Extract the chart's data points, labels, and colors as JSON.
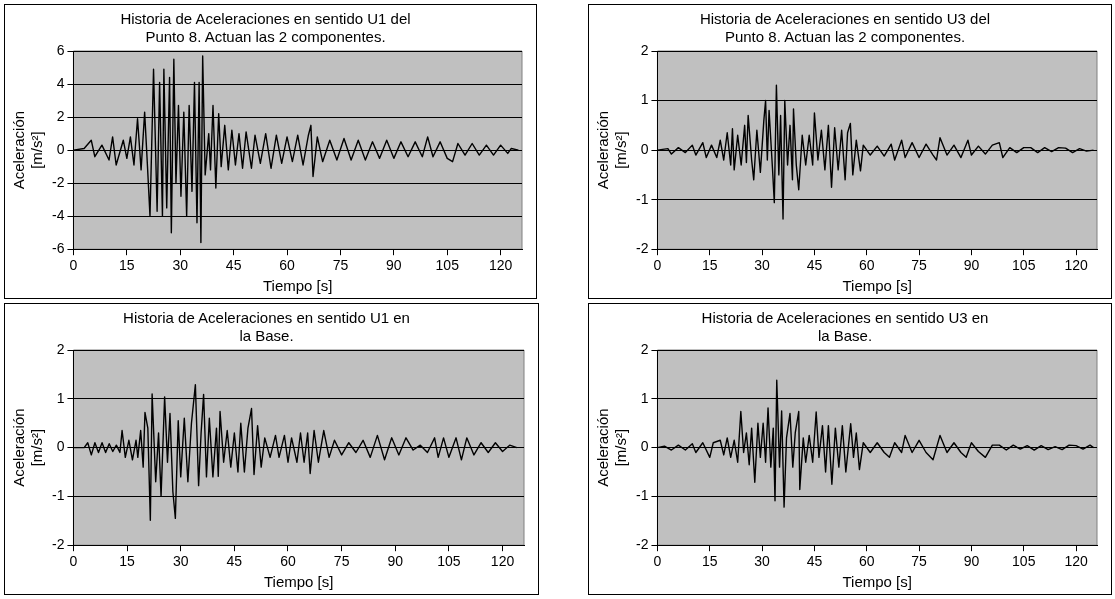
{
  "chart_data": [
    {
      "type": "line",
      "title": "Historia de Aceleraciones en sentido U1 del\nPunto 8. Actuan las 2 componentes.",
      "xlabel": "Tiempo [s]",
      "ylabel": "Aceleración\n[m/s²]",
      "xlim": [
        0,
        126
      ],
      "xticks": [
        0,
        15,
        30,
        45,
        60,
        75,
        90,
        105,
        120
      ],
      "ylim": [
        -6,
        6
      ],
      "yticks": [
        -6,
        -4,
        -2,
        0,
        2,
        4,
        6
      ],
      "grid": "y",
      "legend": false,
      "marker": "none",
      "line_style": "solid",
      "series": [
        {
          "color": "#000000",
          "x": [
            0,
            3,
            5,
            6,
            8,
            10,
            11,
            12,
            14,
            15,
            16,
            17,
            18,
            19,
            20,
            20.8,
            21.5,
            22.5,
            23.5,
            24.2,
            25,
            25.4,
            26.2,
            27,
            27.5,
            28.2,
            28.8,
            29.5,
            30.2,
            31,
            31.8,
            32.5,
            33.3,
            34,
            34.7,
            35.3,
            35.8,
            36.3,
            37,
            38,
            38.5,
            39.2,
            40,
            40.8,
            41.5,
            42.5,
            43.5,
            44.5,
            45.5,
            46.5,
            47.5,
            48.5,
            50,
            51,
            52.5,
            54,
            55.5,
            57,
            58.5,
            60,
            61.5,
            63,
            64.5,
            66,
            66.7,
            67.3,
            68.5,
            70,
            72,
            74,
            76,
            78,
            80,
            82,
            84,
            86,
            88,
            90,
            92,
            94,
            96,
            98,
            99.5,
            101,
            103,
            105,
            106.5,
            108,
            110,
            112,
            114,
            116,
            118,
            120,
            122,
            123,
            125
          ],
          "values": [
            0,
            0.1,
            0.6,
            -0.4,
            0.3,
            -0.6,
            0.8,
            -0.9,
            0.6,
            -0.5,
            0.8,
            -0.9,
            1.9,
            -1.2,
            2.3,
            -1.0,
            -4.0,
            4.9,
            -3.7,
            4.1,
            -4.0,
            4.9,
            -3.5,
            4.4,
            -5.0,
            5.5,
            -2.0,
            2.7,
            -2.8,
            2.3,
            -4.0,
            2.7,
            -2.5,
            4.1,
            -4.4,
            4.1,
            -5.6,
            5.7,
            -1.5,
            1.0,
            -1.2,
            2.7,
            -2.3,
            2.2,
            -1.0,
            1.5,
            -1.2,
            1.2,
            -0.9,
            1.0,
            -1.1,
            1.1,
            -1.1,
            0.9,
            -0.8,
            1.0,
            -1.1,
            0.9,
            -0.8,
            0.8,
            -0.7,
            0.9,
            -0.9,
            0.9,
            1.5,
            -1.6,
            0.8,
            -0.7,
            0.6,
            -0.6,
            0.7,
            -0.6,
            0.6,
            -0.6,
            0.5,
            -0.5,
            0.6,
            -0.5,
            0.5,
            -0.4,
            0.5,
            -0.4,
            0.8,
            -0.4,
            0.5,
            -0.5,
            -0.7,
            0.4,
            -0.3,
            0.4,
            -0.3,
            0.3,
            -0.3,
            0.3,
            -0.2,
            0.1,
            0
          ]
        }
      ]
    },
    {
      "type": "line",
      "title": "Historia de Aceleraciones en sentido U3 del\nPunto 8. Actuan las 2 componentes.",
      "xlabel": "Tiempo [s]",
      "ylabel": "Aceleración\n[m/s²]",
      "xlim": [
        0,
        126
      ],
      "xticks": [
        0,
        15,
        30,
        45,
        60,
        75,
        90,
        105,
        120
      ],
      "ylim": [
        -2,
        2
      ],
      "yticks": [
        -2,
        -1,
        0,
        1,
        2
      ],
      "grid": "y",
      "legend": false,
      "marker": "none",
      "line_style": "solid",
      "series": [
        {
          "color": "#000000",
          "x": [
            0,
            3,
            4,
            6,
            8,
            10,
            11,
            13,
            14,
            15.5,
            17,
            18,
            19,
            20,
            21,
            21.5,
            22,
            23,
            24,
            25,
            25.5,
            26,
            27,
            27.6,
            28.5,
            29.5,
            30.5,
            31,
            31.5,
            32,
            33,
            33.5,
            34.1,
            34.8,
            35.3,
            36,
            36.5,
            37.3,
            38,
            38.7,
            39,
            39.8,
            40.5,
            41.5,
            42.5,
            43.5,
            44.5,
            45,
            46,
            47,
            48,
            49,
            49.9,
            50.8,
            51.8,
            52.8,
            53.8,
            54.5,
            55.3,
            56,
            57,
            58.2,
            59,
            61,
            63,
            65,
            67,
            68,
            70,
            71,
            73,
            75,
            77,
            79,
            80,
            81,
            83,
            85,
            87,
            89,
            90,
            92,
            94,
            96,
            98,
            99,
            101,
            103,
            105,
            107,
            109,
            111,
            113,
            115,
            117,
            119,
            121,
            123,
            125
          ],
          "values": [
            0,
            0.03,
            -0.08,
            0.05,
            -0.05,
            0.1,
            -0.1,
            0.15,
            -0.15,
            0.1,
            -0.15,
            0.2,
            -0.2,
            0.35,
            -0.3,
            0.43,
            -0.4,
            0.3,
            -0.3,
            0.5,
            -0.25,
            0.7,
            -0.2,
            -0.6,
            0.4,
            -0.45,
            0.6,
            1.0,
            -0.2,
            0.8,
            -0.4,
            -1.06,
            1.31,
            -0.5,
            0.7,
            -1.39,
            1.0,
            -0.3,
            0.5,
            -0.6,
            0.83,
            -0.3,
            -0.8,
            0.3,
            -0.3,
            0.3,
            -0.3,
            0.75,
            -0.2,
            0.4,
            -0.4,
            0.5,
            -0.75,
            0.45,
            -0.4,
            0.4,
            -0.6,
            0.35,
            0.54,
            -0.5,
            0.2,
            -0.42,
            0.1,
            -0.1,
            0.08,
            -0.12,
            0.12,
            -0.2,
            0.2,
            -0.15,
            0.15,
            -0.15,
            0.12,
            -0.1,
            -0.2,
            0.25,
            -0.1,
            0.1,
            -0.15,
            0.2,
            -0.1,
            0.08,
            -0.08,
            0.1,
            0.15,
            -0.15,
            0.05,
            -0.05,
            0.05,
            0.05,
            -0.05,
            0.05,
            -0.03,
            0.05,
            0.04,
            -0.05,
            0.03,
            -0.02,
            0
          ]
        }
      ]
    },
    {
      "type": "line",
      "title": "Historia de Aceleraciones en sentido U1 en\nla Base.",
      "xlabel": "Tiempo [s]",
      "ylabel": "Aceleración\n[m/s²]",
      "xlim": [
        0,
        126
      ],
      "xticks": [
        0,
        15,
        30,
        45,
        60,
        75,
        90,
        105,
        120
      ],
      "ylim": [
        -2,
        2
      ],
      "yticks": [
        -2,
        -1,
        0,
        1,
        2
      ],
      "grid": "y",
      "legend": false,
      "marker": "none",
      "line_style": "solid",
      "series": [
        {
          "color": "#000000",
          "x": [
            0,
            3,
            4,
            5,
            6,
            7,
            8,
            9,
            10,
            11,
            12,
            13,
            13.6,
            14.5,
            15.5,
            16.5,
            17.5,
            18,
            18.8,
            19.5,
            20,
            20.8,
            21.5,
            22,
            23,
            23.8,
            24.5,
            25.5,
            26.3,
            27,
            27.8,
            28.5,
            29.3,
            30,
            31,
            32,
            33,
            34.1,
            35,
            35.7,
            36.4,
            37.2,
            38,
            39,
            40,
            40.5,
            41,
            42,
            43,
            44,
            45,
            46,
            46.8,
            47.8,
            48.8,
            49.8,
            50.5,
            51.5,
            52.5,
            53.5,
            55,
            56.5,
            57.5,
            59,
            60,
            61,
            62.5,
            63.5,
            64.5,
            65.5,
            66.2,
            67.3,
            68.5,
            70,
            71.5,
            73,
            75,
            77,
            79,
            81,
            83,
            85,
            87,
            89,
            91,
            93,
            95,
            97,
            99,
            101,
            102,
            103.5,
            105,
            107,
            108.5,
            110,
            112,
            114,
            116,
            118,
            120,
            122,
            124
          ],
          "values": [
            0,
            0,
            0.1,
            -0.15,
            0.1,
            -0.1,
            0.1,
            -0.1,
            0.08,
            -0.08,
            0.05,
            -0.1,
            0.35,
            -0.2,
            0.15,
            -0.25,
            0.15,
            -0.2,
            0.35,
            -0.4,
            0.72,
            0.4,
            -1.49,
            1.1,
            -0.7,
            0.3,
            -1.0,
            1.04,
            -0.3,
            0.7,
            -0.9,
            -1.45,
            0.55,
            -0.6,
            0.6,
            -0.7,
            0.5,
            1.29,
            -0.78,
            0.3,
            1.09,
            -0.6,
            0.6,
            -0.6,
            0.4,
            -0.59,
            0.74,
            -0.3,
            0.35,
            -0.4,
            0.3,
            -0.5,
            0.5,
            -0.5,
            0.4,
            0.8,
            -0.55,
            0.45,
            -0.4,
            0.2,
            -0.2,
            0.25,
            -0.2,
            0.25,
            -0.3,
            0.2,
            -0.3,
            0.3,
            -0.3,
            0.3,
            -0.53,
            0.35,
            -0.3,
            0.35,
            -0.2,
            0.15,
            -0.15,
            0.1,
            -0.1,
            0.15,
            -0.2,
            0.25,
            -0.25,
            0.2,
            -0.15,
            0.2,
            -0.05,
            0.05,
            -0.1,
            0.2,
            -0.2,
            0.2,
            -0.2,
            0.2,
            -0.25,
            0.2,
            -0.15,
            0.1,
            -0.1,
            0.1,
            -0.08,
            0.05,
            0
          ]
        }
      ]
    },
    {
      "type": "line",
      "title": "Historia de Aceleraciones en sentido U3 en\nla Base.",
      "xlabel": "Tiempo [s]",
      "ylabel": "Aceleración\n[m/s²]",
      "xlim": [
        0,
        126
      ],
      "xticks": [
        0,
        15,
        30,
        45,
        60,
        75,
        90,
        105,
        120
      ],
      "ylim": [
        -2,
        2
      ],
      "yticks": [
        -2,
        -1,
        0,
        1,
        2
      ],
      "grid": "y",
      "legend": false,
      "marker": "none",
      "line_style": "solid",
      "series": [
        {
          "color": "#000000",
          "x": [
            0,
            2,
            4,
            6,
            8,
            10,
            11,
            13,
            15,
            16,
            18,
            19,
            20,
            21,
            22,
            23,
            23.9,
            24.7,
            25.5,
            26.3,
            27,
            27.9,
            28.8,
            29.5,
            30.3,
            31,
            31.7,
            32.5,
            33.2,
            33.7,
            34.2,
            35,
            35.6,
            36.3,
            37,
            38,
            38.8,
            39.5,
            40.5,
            40.8,
            41.8,
            42.5,
            43.5,
            44.5,
            45.5,
            46.3,
            47.3,
            48.2,
            49,
            50,
            51,
            52,
            53,
            54,
            55.4,
            56.2,
            57,
            57.9,
            59,
            61,
            63,
            65,
            66.5,
            68,
            70,
            71,
            73,
            75,
            77,
            79,
            81,
            83,
            85,
            87,
            88.5,
            90,
            92,
            94,
            96,
            98,
            100,
            102,
            104,
            106,
            108,
            110,
            112,
            114,
            116,
            118,
            120,
            122,
            124,
            125
          ],
          "values": [
            0,
            0.03,
            -0.05,
            0.05,
            -0.05,
            0.08,
            -0.1,
            0.1,
            -0.2,
            0.1,
            0.15,
            -0.15,
            0.2,
            -0.2,
            0.15,
            -0.3,
            0.74,
            -0.1,
            0.3,
            -0.35,
            0.4,
            -0.71,
            0.5,
            -0.2,
            0.5,
            -0.3,
            0.81,
            -0.4,
            0.4,
            -1.09,
            1.38,
            -0.4,
            0.75,
            -1.22,
            0.2,
            0.7,
            -0.4,
            0.3,
            0.74,
            -0.86,
            0.2,
            -0.3,
            0.25,
            -0.3,
            0.73,
            -0.2,
            0.45,
            -0.5,
            0.45,
            -0.75,
            0.4,
            -0.4,
            0.45,
            -0.5,
            0.49,
            -0.2,
            0.3,
            -0.45,
            0.1,
            -0.1,
            0.1,
            -0.1,
            -0.2,
            0.1,
            -0.1,
            0.25,
            -0.1,
            0.15,
            -0.1,
            -0.25,
            0.25,
            -0.1,
            0.1,
            -0.1,
            -0.2,
            0.1,
            -0.08,
            -0.2,
            0.05,
            0.05,
            -0.05,
            0.05,
            -0.03,
            0.04,
            -0.05,
            0.04,
            -0.04,
            0.02,
            -0.04,
            0.05,
            0.04,
            -0.03,
            0.05,
            0
          ]
        }
      ]
    }
  ]
}
